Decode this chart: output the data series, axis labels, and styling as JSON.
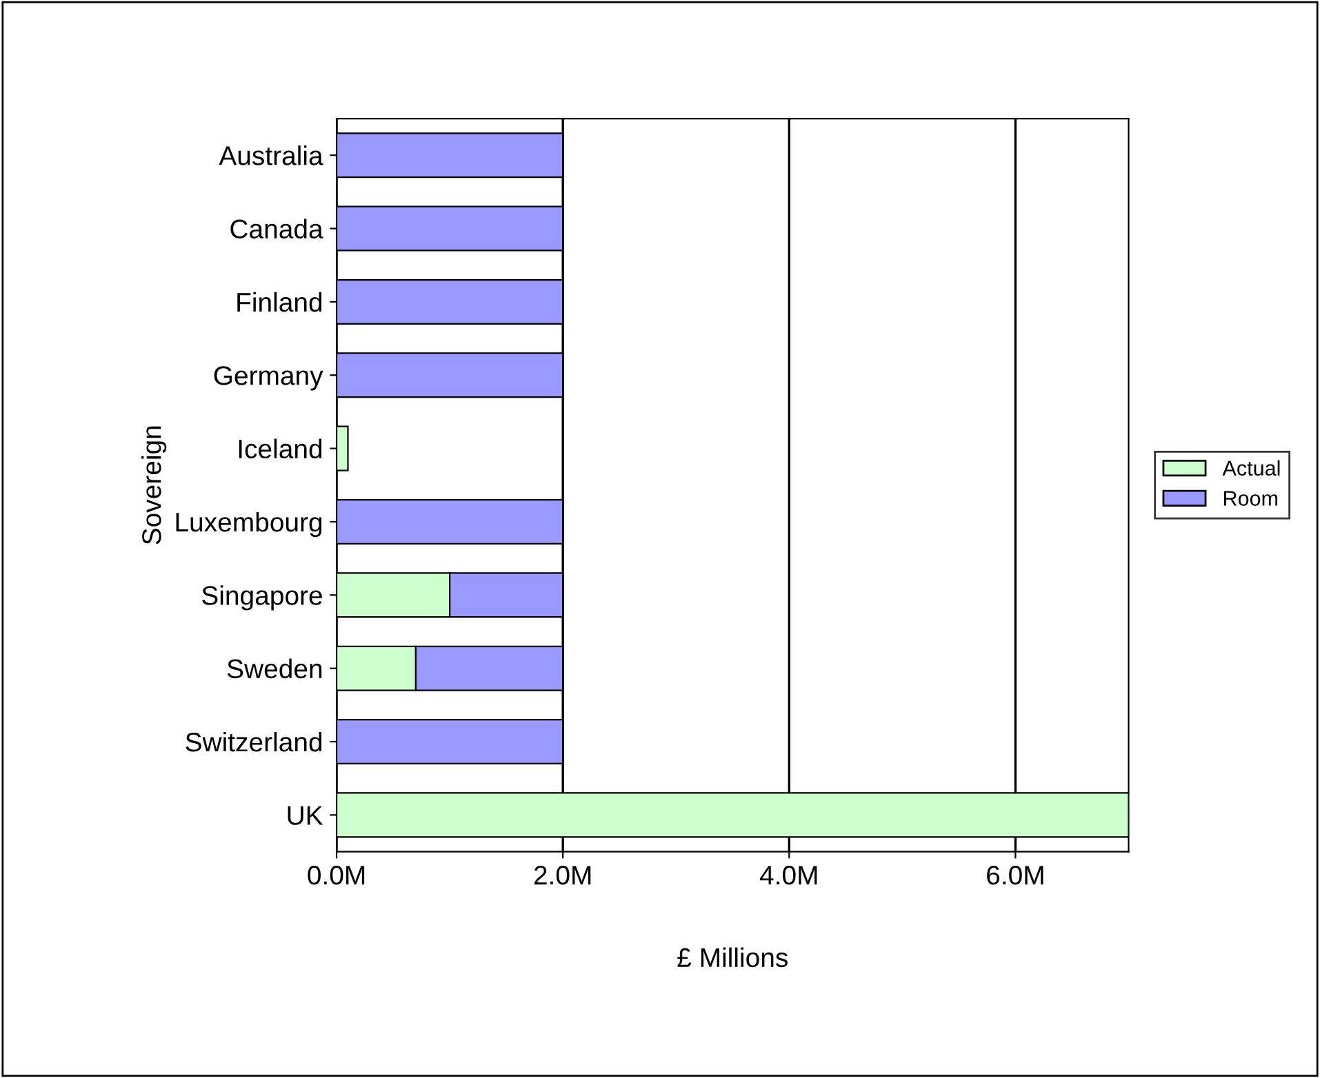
{
  "chart_data": {
    "type": "bar",
    "orientation": "horizontal",
    "stacked": true,
    "xlabel": "£ Millions",
    "ylabel": "Sovereign",
    "categories": [
      "Australia",
      "Canada",
      "Finland",
      "Germany",
      "Iceland",
      "Luxembourg",
      "Singapore",
      "Sweden",
      "Switzerland",
      "UK"
    ],
    "series": [
      {
        "name": "Actual",
        "color": "#ccffcc",
        "values": [
          null,
          null,
          null,
          null,
          0.1,
          null,
          1.0,
          0.7,
          null,
          7.0
        ]
      },
      {
        "name": "Room",
        "color": "#9999ff",
        "values": [
          2.0,
          2.0,
          2.0,
          2.0,
          null,
          2.0,
          1.0,
          1.3,
          2.0,
          null
        ]
      }
    ],
    "xlim": [
      0,
      7.0
    ],
    "xticks": [
      {
        "value": 0,
        "label": "0.0M"
      },
      {
        "value": 2,
        "label": "2.0M"
      },
      {
        "value": 4,
        "label": "4.0M"
      },
      {
        "value": 6,
        "label": "6.0M"
      }
    ],
    "grid": "x",
    "legend": "right"
  }
}
